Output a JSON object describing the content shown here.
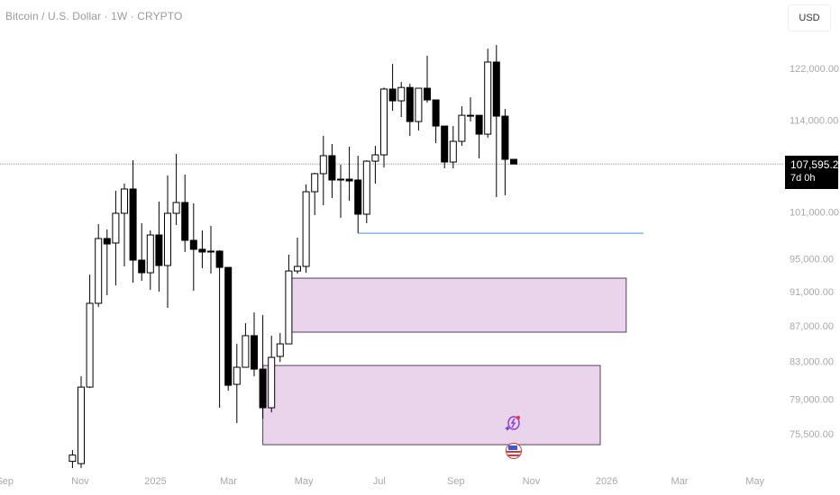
{
  "header": {
    "title": "Bitcoin / U.S. Dollar · 1W · CRYPTO"
  },
  "price_scale": {
    "currency_button": "USD",
    "scale": "log"
  },
  "last_price": {
    "value": "107,595.22",
    "countdown": "7d 0h"
  },
  "icons": {
    "event_icon": "lightning-event-icon",
    "flag_icon": "us-flag-icon"
  },
  "colors": {
    "up_body": "#ffffff",
    "down_body": "#000000",
    "zone_fill": "#e9d4ec",
    "zone_border": "#5a3f5e",
    "level_line": "#3d9ad6",
    "price_line": "#9e9e9e"
  },
  "chart_data": {
    "type": "candlestick",
    "interval": "1W",
    "y_ticks": [
      122000,
      114000,
      101000,
      95000,
      91000,
      87000,
      83000,
      79000,
      75500
    ],
    "y_tick_labels": [
      "122,000.00",
      "114,000.00",
      "101,000.00",
      "95,000.00",
      "91,000.00",
      "87,000.00",
      "83,000.00",
      "79,000.00",
      "75,500.00"
    ],
    "x_ticks": [
      {
        "date": "2024-09-01",
        "label": "Sep"
      },
      {
        "date": "2024-11-01",
        "label": "Nov"
      },
      {
        "date": "2025-01-01",
        "label": "2025"
      },
      {
        "date": "2025-03-01",
        "label": "Mar"
      },
      {
        "date": "2025-05-01",
        "label": "May"
      },
      {
        "date": "2025-07-01",
        "label": "Jul"
      },
      {
        "date": "2025-09-01",
        "label": "Sep"
      },
      {
        "date": "2025-11-01",
        "label": "Nov"
      },
      {
        "date": "2026-01-01",
        "label": "2026"
      },
      {
        "date": "2026-03-01",
        "label": "Mar"
      },
      {
        "date": "2026-05-01",
        "label": "May"
      }
    ],
    "first_candle_date": "2024-10-28",
    "candles": [
      [
        72800,
        73880,
        72150,
        73400
      ],
      [
        72580,
        81410,
        72150,
        80260
      ],
      [
        80260,
        93050,
        80160,
        89600
      ],
      [
        89600,
        99430,
        89170,
        97560
      ],
      [
        97560,
        98720,
        90550,
        96870
      ],
      [
        96990,
        103880,
        91730,
        100850
      ],
      [
        100850,
        104860,
        94050,
        104120
      ],
      [
        104120,
        108130,
        92060,
        94830
      ],
      [
        94830,
        99550,
        92280,
        93270
      ],
      [
        93270,
        98600,
        91190,
        98020
      ],
      [
        98020,
        102410,
        90980,
        94160
      ],
      [
        94160,
        105980,
        89070,
        100850
      ],
      [
        100850,
        109030,
        99310,
        102290
      ],
      [
        102290,
        106110,
        95850,
        97330
      ],
      [
        97330,
        102170,
        91090,
        96190
      ],
      [
        96190,
        98600,
        93820,
        95850
      ],
      [
        95960,
        99190,
        93160,
        95850
      ],
      [
        95960,
        96070,
        78110,
        93930
      ],
      [
        93930,
        93930,
        79880,
        80450
      ],
      [
        80550,
        84950,
        76550,
        82380
      ],
      [
        82380,
        87290,
        82380,
        85870
      ],
      [
        85870,
        88540,
        81410,
        82180
      ],
      [
        82180,
        88230,
        77000,
        78110
      ],
      [
        78110,
        85870,
        77640,
        83460
      ],
      [
        83560,
        86170,
        82960,
        84950
      ],
      [
        84950,
        95510,
        84950,
        93490
      ],
      [
        93490,
        97680,
        93160,
        94050
      ],
      [
        94050,
        104740,
        93270,
        103750
      ],
      [
        103750,
        106360,
        100610,
        106240
      ],
      [
        106240,
        111640,
        101930,
        108780
      ],
      [
        108780,
        110460,
        102900,
        105360
      ],
      [
        105480,
        107500,
        100250,
        105360
      ],
      [
        105480,
        110070,
        102530,
        105230
      ],
      [
        105360,
        108780,
        98250,
        100730
      ],
      [
        100730,
        108130,
        99550,
        108000
      ],
      [
        108000,
        110200,
        104860,
        108900
      ],
      [
        108900,
        118980,
        107110,
        118730
      ],
      [
        118730,
        122720,
        115400,
        116910
      ],
      [
        116910,
        119840,
        114450,
        118980
      ],
      [
        118980,
        119560,
        111640,
        113770
      ],
      [
        113770,
        118860,
        112440,
        118860
      ],
      [
        118860,
        124040,
        116640,
        117050
      ],
      [
        117050,
        117050,
        110590,
        113100
      ],
      [
        113100,
        113100,
        106990,
        107880
      ],
      [
        107880,
        113100,
        106990,
        110850
      ],
      [
        110850,
        116080,
        110200,
        114710
      ],
      [
        114710,
        117460,
        113770,
        114580
      ],
      [
        114710,
        114710,
        108390,
        111900
      ],
      [
        111900,
        125200,
        111380,
        123020
      ],
      [
        123020,
        125810,
        103020,
        114580
      ],
      [
        114580,
        115670,
        103260,
        108260
      ],
      [
        108260,
        108260,
        107595.22,
        107595.22
      ]
    ],
    "candle_fields": [
      "open",
      "high",
      "low",
      "close"
    ],
    "zones": [
      {
        "from": "2025-04-21",
        "to": "2026-01-19",
        "top": 92610,
        "bottom": 86270
      },
      {
        "from": "2025-03-31",
        "to": "2025-12-29",
        "top": 82570,
        "bottom": 74410
      }
    ],
    "level_line": {
      "from": "2025-06-16",
      "to": "2026-02-02",
      "price": 98250
    },
    "last_price_line": 107595.22
  }
}
